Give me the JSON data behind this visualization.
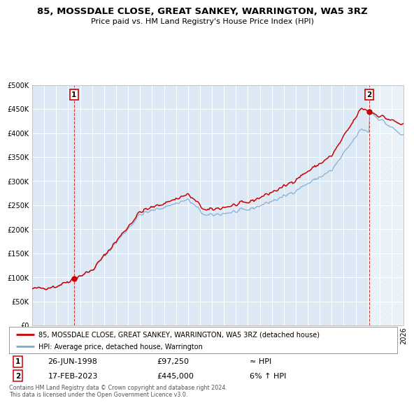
{
  "title_line1": "85, MOSSDALE CLOSE, GREAT SANKEY, WARRINGTON, WA5 3RZ",
  "title_line2": "Price paid vs. HM Land Registry's House Price Index (HPI)",
  "background_color": "#dce9f5",
  "hpi_color": "#7aaad4",
  "price_color": "#cc0000",
  "marker_color": "#cc0000",
  "sale1_date": "26-JUN-1998",
  "sale1_price": 97250,
  "sale1_label": "1",
  "sale2_date": "17-FEB-2023",
  "sale2_price": 445000,
  "sale2_label": "2",
  "sale1_x": 1998.49,
  "sale2_x": 2023.12,
  "ylim_max": 500000,
  "xmin": 1995,
  "xmax": 2026,
  "legend_line1": "85, MOSSDALE CLOSE, GREAT SANKEY, WARRINGTON, WA5 3RZ (detached house)",
  "legend_line2": "HPI: Average price, detached house, Warrington",
  "note": "Contains HM Land Registry data © Crown copyright and database right 2024.\nThis data is licensed under the Open Government Licence v3.0.",
  "sale1_hpi_note": "≈ HPI",
  "sale2_hpi_note": "6% ↑ HPI"
}
